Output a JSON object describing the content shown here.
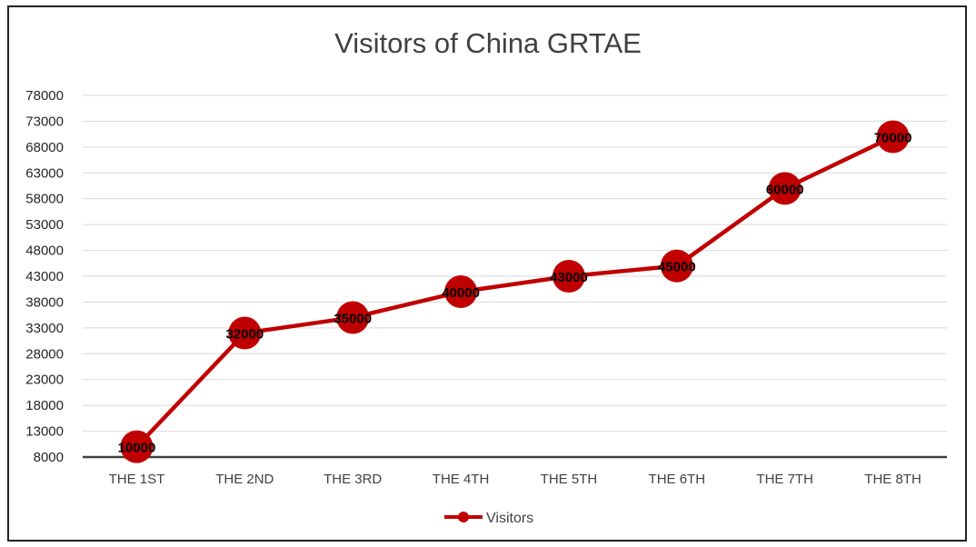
{
  "chart_data": {
    "type": "line",
    "title": "Visitors of China GRTAE",
    "xlabel": "",
    "ylabel": "",
    "categories": [
      "THE 1ST",
      "THE 2ND",
      "THE 3RD",
      "THE 4TH",
      "THE 5TH",
      "THE 6TH",
      "THE 7TH",
      "THE 8TH"
    ],
    "series": [
      {
        "name": "Visitors",
        "values": [
          10000,
          32000,
          35000,
          40000,
          43000,
          45000,
          60000,
          70000
        ],
        "color": "#C00000"
      }
    ],
    "yticks": [
      8000,
      13000,
      18000,
      23000,
      28000,
      33000,
      38000,
      43000,
      48000,
      53000,
      58000,
      63000,
      68000,
      73000,
      78000
    ],
    "ylim": [
      8000,
      78000
    ],
    "grid": true,
    "data_labels": true,
    "legend_position": "bottom"
  }
}
